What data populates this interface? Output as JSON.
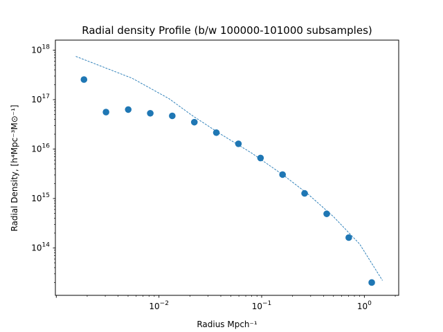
{
  "chart_data": {
    "type": "scatter",
    "title": "Radial density Profile (b/w 100000-101000 subsamples)",
    "xlabel": "Radius Mpch⁻¹",
    "ylabel": "Radial Density, [h⁴Mpc⁻³M⊙⁻¹]",
    "xscale": "log",
    "yscale": "log",
    "xlim": [
      0.00098,
      2.16
    ],
    "ylim": [
      11000000000000.0,
      1.6e+18
    ],
    "grid": false,
    "x_ticks": [
      {
        "value": 0.01,
        "base": "10",
        "exp": "−2"
      },
      {
        "value": 0.1,
        "base": "10",
        "exp": "−1"
      },
      {
        "value": 1,
        "base": "10",
        "exp": "0"
      }
    ],
    "y_ticks": [
      {
        "value": 100000000000000.0,
        "base": "10",
        "exp": "14"
      },
      {
        "value": 1000000000000000.0,
        "base": "10",
        "exp": "15"
      },
      {
        "value": 1e+16,
        "base": "10",
        "exp": "16"
      },
      {
        "value": 1e+17,
        "base": "10",
        "exp": "17"
      },
      {
        "value": 1e+18,
        "base": "10",
        "exp": "18"
      }
    ],
    "points": {
      "x": [
        0.00186,
        0.00305,
        0.00502,
        0.00823,
        0.01347,
        0.0221,
        0.0362,
        0.0594,
        0.0975,
        0.1598,
        0.262,
        0.43,
        0.705,
        1.18
      ],
      "y": [
        2.55e+17,
        5.6e+16,
        6.3e+16,
        5.3e+16,
        4.7e+16,
        3.5e+16,
        2.15e+16,
        1.28e+16,
        6600000000000000.0,
        3050000000000000.0,
        1270000000000000.0,
        490000000000000.0,
        162000000000000.0,
        20000000000000.0
      ],
      "color": "#1f77b4"
    },
    "fit_line": {
      "x": [
        0.00155,
        0.0055,
        0.0125,
        0.021,
        0.04,
        0.08,
        0.16,
        0.28,
        0.5,
        0.9,
        1.5
      ],
      "y": [
        7.5e+17,
        2.7e+17,
        1.05e+17,
        4.8e+16,
        2e+16,
        8300000000000000.0,
        3050000000000000.0,
        1250000000000000.0,
        430000000000000.0,
        120000000000000.0,
        22000000000000.0
      ],
      "color": "#1f77b4",
      "style": "dashed"
    }
  }
}
